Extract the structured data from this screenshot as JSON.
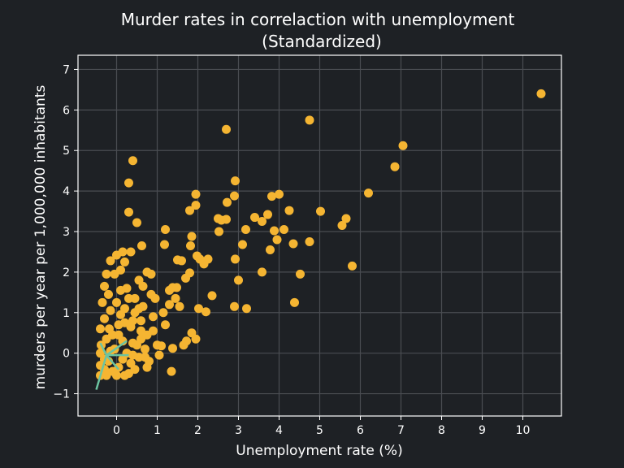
{
  "chart_data": {
    "type": "scatter",
    "title_line1": "Murder rates in correlaction with unemployment",
    "title_line2": "(Standardized)",
    "xlabel": "Unemployment rate (%)",
    "ylabel": "murders per year per 1,000,000 inhabitants",
    "xlim": [
      -0.95,
      10.95
    ],
    "ylim": [
      -1.55,
      7.35
    ],
    "xticks": [
      "0",
      "1",
      "2",
      "3",
      "4",
      "5",
      "6",
      "7",
      "8",
      "9",
      "10"
    ],
    "yticks": [
      "−1",
      "0",
      "1",
      "2",
      "3",
      "4",
      "5",
      "6",
      "7"
    ],
    "grid": true,
    "colors": {
      "background": "#1e2125",
      "point": "#f5b532",
      "grid": "#4a4d52",
      "axis": "#ffffff",
      "arrow": "#6cc4a1"
    },
    "points": [
      [
        10.45,
        6.4
      ],
      [
        7.05,
        5.12
      ],
      [
        6.85,
        4.6
      ],
      [
        6.2,
        3.95
      ],
      [
        5.8,
        2.15
      ],
      [
        5.65,
        3.32
      ],
      [
        5.55,
        3.15
      ],
      [
        5.02,
        3.5
      ],
      [
        4.75,
        5.75
      ],
      [
        4.75,
        2.75
      ],
      [
        4.52,
        1.95
      ],
      [
        4.38,
        1.25
      ],
      [
        4.35,
        2.7
      ],
      [
        4.25,
        3.52
      ],
      [
        4.12,
        3.05
      ],
      [
        4.0,
        3.92
      ],
      [
        3.95,
        2.8
      ],
      [
        3.88,
        3.02
      ],
      [
        3.82,
        3.87
      ],
      [
        3.78,
        2.55
      ],
      [
        3.72,
        3.42
      ],
      [
        3.58,
        3.25
      ],
      [
        3.58,
        2.0
      ],
      [
        3.4,
        3.35
      ],
      [
        3.2,
        1.1
      ],
      [
        3.18,
        3.05
      ],
      [
        3.1,
        2.68
      ],
      [
        3.0,
        1.8
      ],
      [
        2.92,
        4.25
      ],
      [
        2.9,
        3.88
      ],
      [
        2.92,
        2.32
      ],
      [
        2.9,
        1.15
      ],
      [
        2.7,
        5.52
      ],
      [
        2.72,
        3.72
      ],
      [
        2.7,
        3.3
      ],
      [
        2.58,
        3.28
      ],
      [
        2.5,
        3.32
      ],
      [
        2.52,
        3.0
      ],
      [
        2.35,
        1.42
      ],
      [
        2.25,
        2.32
      ],
      [
        2.2,
        1.02
      ],
      [
        2.15,
        2.2
      ],
      [
        2.05,
        2.32
      ],
      [
        2.02,
        1.1
      ],
      [
        1.98,
        2.4
      ],
      [
        1.95,
        3.92
      ],
      [
        1.95,
        3.65
      ],
      [
        1.95,
        0.35
      ],
      [
        1.85,
        0.5
      ],
      [
        1.85,
        2.88
      ],
      [
        1.82,
        2.65
      ],
      [
        1.8,
        3.52
      ],
      [
        1.8,
        1.98
      ],
      [
        1.72,
        0.3
      ],
      [
        1.6,
        2.28
      ],
      [
        1.5,
        2.3
      ],
      [
        1.48,
        1.62
      ],
      [
        1.38,
        1.62
      ],
      [
        1.38,
        0.12
      ],
      [
        1.35,
        -0.45
      ],
      [
        1.2,
        3.05
      ],
      [
        1.18,
        2.68
      ],
      [
        1.15,
        1.0
      ],
      [
        1.1,
        0.18
      ],
      [
        1.0,
        0.2
      ],
      [
        1.65,
        0.2
      ],
      [
        1.55,
        1.15
      ],
      [
        1.45,
        1.35
      ],
      [
        1.7,
        1.85
      ],
      [
        1.3,
        1.2
      ],
      [
        0.75,
        2.0
      ],
      [
        0.62,
        2.65
      ],
      [
        0.5,
        3.22
      ],
      [
        0.4,
        4.75
      ],
      [
        0.3,
        4.2
      ],
      [
        0.3,
        3.48
      ],
      [
        0.2,
        2.25
      ],
      [
        0.15,
        2.5
      ],
      [
        0.1,
        2.05
      ],
      [
        0.0,
        2.42
      ],
      [
        -0.05,
        1.95
      ],
      [
        -0.25,
        1.95
      ],
      [
        -0.3,
        1.65
      ],
      [
        -0.15,
        2.28
      ],
      [
        0.35,
        2.5
      ],
      [
        0.55,
        1.8
      ],
      [
        0.85,
        1.45
      ],
      [
        0.9,
        0.9
      ],
      [
        0.7,
        0.1
      ],
      [
        0.55,
        -0.1
      ],
      [
        0.45,
        -0.4
      ],
      [
        0.3,
        -0.5
      ],
      [
        0.8,
        -0.2
      ],
      [
        0.6,
        0.55
      ],
      [
        0.4,
        0.8
      ],
      [
        0.2,
        1.1
      ],
      [
        0.05,
        0.7
      ],
      [
        0.15,
        0.3
      ],
      [
        -0.1,
        0.45
      ],
      [
        -0.3,
        0.85
      ],
      [
        -0.35,
        1.25
      ],
      [
        -0.2,
        1.45
      ],
      [
        0.0,
        1.25
      ],
      [
        0.25,
        1.6
      ],
      [
        0.45,
        1.35
      ],
      [
        0.65,
        1.15
      ],
      [
        0.9,
        0.55
      ],
      [
        1.05,
        -0.05
      ],
      [
        0.75,
        -0.35
      ],
      [
        0.5,
        0.2
      ],
      [
        0.35,
        0.65
      ],
      [
        0.1,
        0.95
      ],
      [
        -0.05,
        0.1
      ],
      [
        -0.25,
        0.35
      ],
      [
        -0.4,
        0.0
      ],
      [
        -0.4,
        -0.3
      ],
      [
        -0.4,
        -0.55
      ],
      [
        -0.3,
        -0.4
      ],
      [
        -0.2,
        -0.2
      ],
      [
        0.05,
        -0.35
      ],
      [
        0.2,
        -0.55
      ],
      [
        0.0,
        -0.55
      ],
      [
        -0.15,
        0.05
      ],
      [
        0.25,
        0.0
      ],
      [
        0.4,
        0.25
      ],
      [
        0.6,
        0.8
      ],
      [
        0.75,
        0.45
      ],
      [
        0.3,
        1.35
      ],
      [
        0.1,
        1.55
      ],
      [
        -0.15,
        1.05
      ],
      [
        -0.4,
        0.6
      ],
      [
        -0.38,
        0.2
      ],
      [
        -0.3,
        -0.15
      ],
      [
        -0.18,
        0.6
      ],
      [
        0.05,
        0.45
      ],
      [
        0.2,
        0.75
      ],
      [
        0.45,
        1.0
      ],
      [
        0.65,
        1.65
      ],
      [
        0.85,
        1.95
      ],
      [
        0.55,
        1.1
      ],
      [
        0.35,
        -0.25
      ],
      [
        0.15,
        -0.15
      ],
      [
        -0.1,
        -0.45
      ],
      [
        -0.25,
        -0.55
      ],
      [
        0.4,
        -0.05
      ],
      [
        0.6,
        0.35
      ],
      [
        1.2,
        0.7
      ],
      [
        1.3,
        1.55
      ],
      [
        0.95,
        1.35
      ],
      [
        0.7,
        -0.1
      ]
    ]
  }
}
